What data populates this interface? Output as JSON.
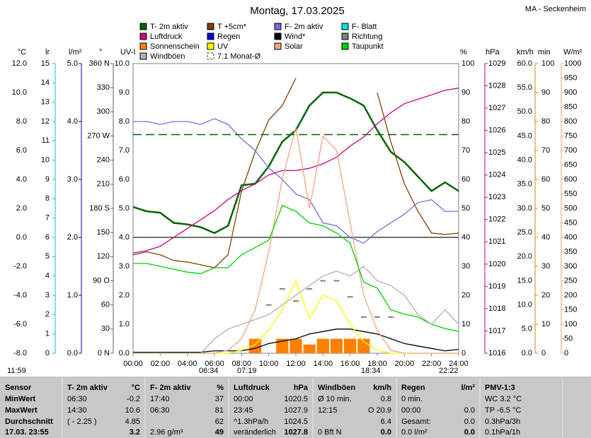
{
  "chart_data": {
    "type": "line",
    "title": "Montag, 17.03.2025",
    "location": "MA - Seckenheim",
    "xlim": [
      0,
      24
    ],
    "xticks": [
      {
        "value": 0,
        "label": "00:00"
      },
      {
        "value": 2,
        "label": "02:00"
      },
      {
        "value": 4,
        "label": "04:00"
      },
      {
        "value": 6,
        "label": "06:00"
      },
      {
        "value": 8,
        "label": "08:00"
      },
      {
        "value": 10,
        "label": "10:00"
      },
      {
        "value": 12,
        "label": "12:00"
      },
      {
        "value": 14,
        "label": "14:00"
      },
      {
        "value": 16,
        "label": "16:00"
      },
      {
        "value": 18,
        "label": "18:00"
      },
      {
        "value": 20,
        "label": "20:00"
      },
      {
        "value": 22,
        "label": "22:00"
      },
      {
        "value": 24,
        "label": "24:00"
      }
    ],
    "x": [
      0,
      1,
      2,
      3,
      4,
      5,
      6,
      7,
      8,
      9,
      10,
      11,
      12,
      13,
      14,
      15,
      16,
      17,
      18,
      19,
      20,
      21,
      22,
      23,
      24
    ],
    "axes": [
      {
        "label": "°C",
        "color": "#008000",
        "lim": [
          -8,
          12
        ],
        "ticks": [
          {
            "value": -8,
            "label": "-8.0"
          },
          {
            "value": -6,
            "label": "-6.0"
          },
          {
            "value": -4,
            "label": "-4.0"
          },
          {
            "value": -2,
            "label": "-2.0"
          },
          {
            "value": 0,
            "label": "0.0"
          },
          {
            "value": 2,
            "label": "2.0"
          },
          {
            "value": 4,
            "label": "4.0"
          },
          {
            "value": 6,
            "label": "6.0"
          },
          {
            "value": 8,
            "label": "8.0"
          },
          {
            "value": 10,
            "label": "10.0"
          },
          {
            "value": 12,
            "label": "12.0"
          }
        ]
      },
      {
        "label": "lr",
        "color": "#00c8c8",
        "lim": [
          0,
          15
        ],
        "ticks": [
          0,
          1,
          2,
          3,
          4,
          5,
          6,
          7,
          8,
          9,
          10,
          11,
          12,
          13,
          14,
          15
        ]
      },
      {
        "label": "l/m²",
        "color": "#0000a0",
        "lim": [
          0,
          5
        ],
        "ticks": [
          {
            "value": 0,
            "label": "0.0"
          },
          {
            "value": 1,
            "label": "1.0"
          },
          {
            "value": 2,
            "label": "2.0"
          },
          {
            "value": 3,
            "label": "3.0"
          },
          {
            "value": 4,
            "label": "4.0"
          },
          {
            "value": 5,
            "label": "5.0"
          }
        ]
      },
      {
        "label": "°",
        "color": "#606060",
        "lim": [
          0,
          360
        ],
        "ticks": [
          {
            "value": 0,
            "label": "0 N"
          },
          30,
          60,
          {
            "value": 90,
            "label": "90 O"
          },
          120,
          150,
          {
            "value": 180,
            "label": "180 S"
          },
          210,
          240,
          {
            "value": 270,
            "label": "270 W"
          },
          300,
          330,
          {
            "value": 360,
            "label": "360 N"
          }
        ]
      },
      {
        "label": "UV-I",
        "color": "#c0c000",
        "lim": [
          0,
          10
        ],
        "ticks": [
          {
            "value": 0,
            "label": "0.0"
          },
          {
            "value": 1,
            "label": "1.0"
          },
          {
            "value": 2,
            "label": "2.0"
          },
          {
            "value": 3,
            "label": "3.0"
          },
          {
            "value": 4,
            "label": "4.0"
          },
          {
            "value": 5,
            "label": "5.0"
          },
          {
            "value": 6,
            "label": "6.0"
          },
          {
            "value": 7,
            "label": "7.0"
          },
          {
            "value": 8,
            "label": "8.0"
          },
          {
            "value": 9,
            "label": "9.0"
          },
          {
            "value": 10,
            "label": "10.0"
          }
        ]
      },
      {
        "label": "%",
        "color": "#8080c0",
        "lim": [
          0,
          100
        ],
        "ticks": [
          0,
          10,
          20,
          30,
          40,
          50,
          60,
          70,
          80,
          90,
          100
        ]
      },
      {
        "label": "hPa",
        "color": "#c00080",
        "lim": [
          1016,
          1029
        ],
        "ticks": [
          1016,
          1017,
          1018,
          1019,
          1020,
          1021,
          1022,
          1023,
          1024,
          1025,
          1026,
          1027,
          1028,
          1029
        ]
      },
      {
        "label": "km/h",
        "color": "#000000",
        "lim": [
          0,
          60
        ],
        "ticks": [
          {
            "value": 0,
            "label": "0.0"
          },
          {
            "value": 5,
            "label": "5.0"
          },
          {
            "value": 10,
            "label": "10.0"
          },
          {
            "value": 15,
            "label": "15.0"
          },
          {
            "value": 20,
            "label": "20.0"
          },
          {
            "value": 25,
            "label": "25.0"
          },
          {
            "value": 30,
            "label": "30.0"
          },
          {
            "value": 35,
            "label": "35.0"
          },
          {
            "value": 40,
            "label": "40.0"
          },
          {
            "value": 45,
            "label": "45.0"
          },
          {
            "value": 50,
            "label": "50.0"
          },
          {
            "value": 55,
            "label": "55.0"
          },
          {
            "value": 60,
            "label": "60.0"
          }
        ]
      },
      {
        "label": "min",
        "color": "#e08000",
        "lim": [
          0,
          100
        ],
        "ticks": [
          0,
          10,
          20,
          30,
          40,
          50,
          60,
          70,
          80,
          90,
          100
        ]
      },
      {
        "label": "W/m²",
        "color": "#f0a070",
        "lim": [
          0,
          1000
        ],
        "ticks": [
          0,
          50,
          100,
          150,
          200,
          250,
          300,
          350,
          400,
          450,
          500,
          550,
          600,
          650,
          700,
          750,
          800,
          850,
          900,
          950,
          1000
        ]
      }
    ],
    "series": [
      {
        "name": "T- 2m aktiv",
        "color": "#006400",
        "axis": 0,
        "values": [
          2.1,
          1.8,
          1.7,
          1.0,
          0.9,
          0.7,
          0.3,
          0.8,
          3.6,
          3.7,
          4.9,
          6.6,
          7.4,
          9.1,
          10.0,
          10.0,
          9.6,
          9.1,
          7.4,
          5.9,
          5.2,
          4.2,
          3.2,
          3.8,
          3.2
        ]
      },
      {
        "name": "T +5cm*",
        "color": "#804000",
        "axis": 0,
        "values": [
          -1.2,
          -1.0,
          -1.2,
          -1.6,
          -1.7,
          -1.9,
          -2.1,
          -1.2,
          3.2,
          5.9,
          8.1,
          9.1,
          11.0,
          null,
          null,
          null,
          null,
          null,
          10.0,
          6.6,
          3.7,
          1.8,
          0.3,
          0.2,
          0.3
        ]
      },
      {
        "name": "F- 2m aktiv",
        "color": "#7070e0",
        "axis": 5,
        "values": [
          80,
          80,
          79,
          80,
          80,
          79,
          81,
          79,
          74,
          70,
          64,
          60,
          55,
          53,
          45,
          44,
          40,
          38,
          42,
          45,
          48,
          52,
          53,
          49,
          49
        ]
      },
      {
        "name": "F- Blatt",
        "color": "#00e0e0",
        "axis": 5
      },
      {
        "name": "Luftdruck",
        "color": "#d00080",
        "axis": 6,
        "values": [
          1020.5,
          1020.6,
          1020.8,
          1021.2,
          1021.6,
          1022.0,
          1022.4,
          1022.9,
          1023.3,
          1023.6,
          1024.0,
          1024.2,
          1024.2,
          1024.3,
          1024.5,
          1024.8,
          1025.3,
          1025.7,
          1026.3,
          1026.8,
          1027.2,
          1027.4,
          1027.6,
          1027.8,
          1027.9
        ]
      },
      {
        "name": "Regen",
        "color": "#0000e0",
        "axis": 2
      },
      {
        "name": "Wind*",
        "color": "#000000",
        "axis": 7,
        "values": [
          0.2,
          0.2,
          0.2,
          0.2,
          0.2,
          0.2,
          0.5,
          0.5,
          0.5,
          1,
          2,
          2.5,
          3,
          4,
          4.5,
          5,
          5,
          4.5,
          4,
          3,
          2,
          1.5,
          1,
          0.5,
          0.8
        ]
      },
      {
        "name": "Richtung",
        "color": "#808080",
        "axis": 3,
        "mark": "points",
        "values": [
          null,
          null,
          null,
          null,
          null,
          null,
          null,
          null,
          null,
          null,
          60,
          80,
          65,
          80,
          90,
          90,
          70,
          45,
          45,
          45,
          null,
          null,
          null,
          null,
          null
        ]
      },
      {
        "name": "Sonnenschein",
        "color": "#ff8000",
        "axis": 8,
        "mark": "bar",
        "values": [
          0,
          0,
          0,
          0,
          0,
          0,
          0,
          0,
          0,
          5,
          0,
          5,
          5,
          3,
          5,
          5,
          5,
          5,
          0,
          0,
          0,
          0,
          0,
          0,
          0
        ]
      },
      {
        "name": "UV",
        "color": "#ffff00",
        "axis": 4,
        "values": [
          0,
          0,
          0,
          0,
          0,
          0,
          0,
          0,
          0.1,
          0.3,
          0.8,
          1.5,
          2.5,
          1.2,
          2.0,
          1.8,
          1.0,
          0.4,
          0.1,
          0,
          0,
          0,
          0,
          0,
          0
        ]
      },
      {
        "name": "Solar",
        "color": "#f8a080",
        "axis": 9,
        "values": [
          0,
          0,
          0,
          0,
          0,
          0,
          0,
          10,
          50,
          150,
          350,
          600,
          780,
          500,
          750,
          700,
          450,
          200,
          80,
          10,
          0,
          0,
          0,
          0,
          0
        ]
      },
      {
        "name": "Taupunkt",
        "color": "#00d000",
        "axis": 0,
        "values": [
          -1.8,
          -1.8,
          -2.0,
          -2.2,
          -2.4,
          -2.5,
          -2.1,
          -2.1,
          -1.2,
          -0.7,
          -0.2,
          2.2,
          1.8,
          1.0,
          0.8,
          0.3,
          -0.4,
          -3.1,
          -3.5,
          -5.0,
          -5.3,
          -5.5,
          -6.0,
          -6.3,
          -6.5
        ]
      },
      {
        "name": "Windböen",
        "color": "#b0b0b0",
        "axis": 7,
        "values": [
          0,
          0,
          0,
          0,
          0,
          0,
          3,
          5,
          6,
          7,
          8,
          10,
          12,
          14,
          16,
          17,
          16,
          18,
          15,
          14,
          12,
          8,
          6,
          9,
          6
        ]
      },
      {
        "name": "7.1 Monat-Ø",
        "color": "#006400",
        "axis": 0,
        "mark": "dash",
        "value": 7.1
      }
    ],
    "annotations": [
      "11:59",
      "06:34",
      "07:19",
      "18:34",
      "22:22"
    ]
  },
  "table": {
    "header": [
      "Sensor",
      [
        "T- 2m aktiv",
        "°C"
      ],
      [
        "F- 2m aktiv",
        "%"
      ],
      [
        "Luftdruck",
        "hPa"
      ],
      [
        "Windböen",
        "km/h"
      ],
      [
        "Regen",
        "l/m²"
      ],
      "PMV-1:3"
    ],
    "rows": [
      [
        "MinWert",
        [
          "06:30",
          "-0.2"
        ],
        [
          "17:40",
          "37"
        ],
        [
          "00:00",
          "1020.5"
        ],
        [
          "Ø 10 min.",
          "0.8"
        ],
        [
          "0 min.",
          null
        ],
        "WC 3.2 °C"
      ],
      [
        "MaxWert",
        [
          "14:30",
          "10.6"
        ],
        [
          "06:30",
          "81"
        ],
        [
          "23:45",
          "1027.9"
        ],
        [
          "12:15",
          "O 20.9"
        ],
        [
          "00:00",
          "0.0"
        ],
        "TP -6.5 °C"
      ],
      [
        "Durchschnitt",
        [
          "( - 2.25 )",
          "4.85"
        ],
        [
          null,
          "62"
        ],
        [
          "^1.3hPa/h",
          "1024.5"
        ],
        [
          null,
          "6.4"
        ],
        [
          "Gesamt:",
          "0.0"
        ],
        "0.3hPa/3h"
      ],
      [
        "17.03. 23:55",
        [
          null,
          "3.2"
        ],
        [
          "2.96 g/m³",
          "49"
        ],
        [
          "veränderlich",
          "1027.8"
        ],
        [
          "0 Bft N",
          "0.0"
        ],
        [
          "0.0 l/m²",
          "0.0"
        ],
        "0.1hPa/1h"
      ]
    ]
  }
}
